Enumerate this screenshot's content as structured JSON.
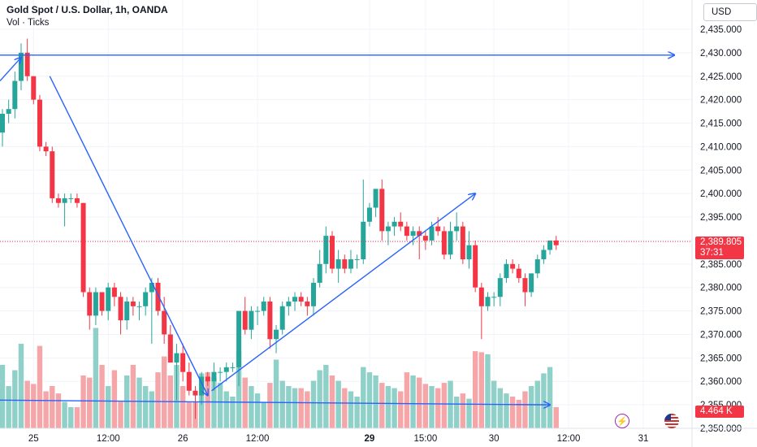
{
  "header": {
    "symbol_line": "Gold Spot / U.S. Dollar, 1h, OANDA",
    "indicator_line": "Vol · Ticks"
  },
  "currency_label": "USD",
  "last_price": {
    "value": "2,389.805",
    "countdown": "37:31"
  },
  "last_volume": "4.464 K",
  "icons": [
    "lightning-icon",
    "us-flag-icon"
  ],
  "colors": {
    "up": "#26a69a",
    "down": "#f23645",
    "up_vol": "#8fd0c8",
    "down_vol": "#f5a6a9",
    "drawing": "#2962ff",
    "grid": "#f0f3fa"
  },
  "chart_data": {
    "type": "candlestick",
    "title": "Gold Spot / U.S. Dollar, 1h, OANDA",
    "subtitle": "Vol · Ticks",
    "ylim": [
      2350.0,
      2440.0
    ],
    "y_ticks": [
      "2,435.000",
      "2,430.000",
      "2,425.000",
      "2,420.000",
      "2,415.000",
      "2,410.000",
      "2,405.000",
      "2,400.000",
      "2,395.000",
      "2,390.000",
      "2,385.000",
      "2,380.000",
      "2,375.000",
      "2,370.000",
      "2,365.000",
      "2,360.000",
      "2,355.000",
      "2,350.000"
    ],
    "x_ticks": [
      {
        "label": "25",
        "index": 5
      },
      {
        "label": "12:00",
        "index": 17
      },
      {
        "label": "26",
        "index": 29
      },
      {
        "label": "12:00",
        "index": 41
      },
      {
        "label": "29",
        "index": 59
      },
      {
        "label": "15:00",
        "index": 68
      },
      {
        "label": "30",
        "index": 79
      },
      {
        "label": "12:00",
        "index": 91
      },
      {
        "label": "31",
        "index": 103
      }
    ],
    "candles": [
      [
        2413,
        2418,
        2410,
        2417,
        60
      ],
      [
        2417,
        2420,
        2415,
        2418,
        40
      ],
      [
        2418,
        2426,
        2416,
        2424,
        55
      ],
      [
        2424,
        2432,
        2422,
        2430,
        80
      ],
      [
        2430,
        2433,
        2424,
        2425,
        45
      ],
      [
        2425,
        2425,
        2419,
        2420,
        42
      ],
      [
        2420,
        2421,
        2409,
        2410,
        78
      ],
      [
        2410,
        2411,
        2408,
        2409,
        35
      ],
      [
        2409,
        2410,
        2398,
        2399,
        40
      ],
      [
        2399,
        2400,
        2397,
        2398,
        33
      ],
      [
        2398,
        2400,
        2393,
        2399,
        25
      ],
      [
        2399,
        2400,
        2398,
        2399,
        20
      ],
      [
        2399,
        2400,
        2397,
        2398,
        20
      ],
      [
        2398,
        2398,
        2378,
        2379,
        50
      ],
      [
        2379,
        2380,
        2371,
        2374,
        48
      ],
      [
        2374,
        2380,
        2372,
        2379,
        95
      ],
      [
        2379,
        2379,
        2374,
        2375,
        60
      ],
      [
        2375,
        2381,
        2373,
        2380,
        40
      ],
      [
        2380,
        2381,
        2376,
        2378,
        55
      ],
      [
        2378,
        2379,
        2370,
        2373,
        25
      ],
      [
        2373,
        2378,
        2371,
        2377,
        50
      ],
      [
        2377,
        2378,
        2374,
        2376,
        60
      ],
      [
        2376,
        2377,
        2373,
        2376,
        48
      ],
      [
        2376,
        2380,
        2374,
        2379,
        40
      ],
      [
        2379,
        2382,
        2368,
        2381,
        35
      ],
      [
        2381,
        2382,
        2374,
        2375,
        53
      ],
      [
        2375,
        2378,
        2368,
        2370,
        68
      ],
      [
        2370,
        2372,
        2364,
        2364,
        50
      ],
      [
        2364,
        2368,
        2356,
        2366,
        60
      ],
      [
        2366,
        2368,
        2360,
        2362,
        40
      ],
      [
        2362,
        2364,
        2357,
        2358,
        25
      ],
      [
        2358,
        2359,
        2352,
        2357,
        25
      ],
      [
        2357,
        2362,
        2355,
        2361,
        52
      ],
      [
        2361,
        2362,
        2359,
        2360,
        53
      ],
      [
        2360,
        2364,
        2358,
        2362,
        48
      ],
      [
        2362,
        2363,
        2360,
        2362,
        43
      ],
      [
        2362,
        2364,
        2360,
        2363,
        35
      ],
      [
        2363,
        2364,
        2362,
        2363,
        30
      ],
      [
        2363,
        2375,
        2359,
        2375,
        73
      ],
      [
        2375,
        2378,
        2370,
        2371,
        48
      ],
      [
        2371,
        2376,
        2369,
        2375,
        40
      ],
      [
        2375,
        2376,
        2372,
        2375,
        33
      ],
      [
        2375,
        2378,
        2374,
        2377,
        25
      ],
      [
        2377,
        2378,
        2367,
        2369,
        43
      ],
      [
        2369,
        2372,
        2366,
        2371,
        65
      ],
      [
        2371,
        2377,
        2370,
        2376,
        45
      ],
      [
        2376,
        2378,
        2374,
        2377,
        40
      ],
      [
        2377,
        2379,
        2375,
        2378,
        38
      ],
      [
        2378,
        2379,
        2376,
        2377,
        38
      ],
      [
        2377,
        2378,
        2374,
        2376,
        35
      ],
      [
        2376,
        2382,
        2374,
        2381,
        45
      ],
      [
        2381,
        2388,
        2380,
        2385,
        55
      ],
      [
        2385,
        2393,
        2383,
        2391,
        60
      ],
      [
        2391,
        2392,
        2383,
        2384,
        50
      ],
      [
        2384,
        2388,
        2381,
        2386,
        45
      ],
      [
        2386,
        2387,
        2383,
        2384,
        38
      ],
      [
        2384,
        2388,
        2383,
        2386,
        35
      ],
      [
        2386,
        2387,
        2384,
        2386,
        30
      ],
      [
        2386,
        2403,
        2385,
        2394,
        58
      ],
      [
        2394,
        2398,
        2393,
        2397,
        53
      ],
      [
        2397,
        2401,
        2395,
        2401,
        50
      ],
      [
        2401,
        2403,
        2390,
        2392,
        43
      ],
      [
        2392,
        2394,
        2389,
        2393,
        40
      ],
      [
        2393,
        2395,
        2391,
        2394,
        38
      ],
      [
        2394,
        2396,
        2392,
        2393,
        35
      ],
      [
        2393,
        2394,
        2390,
        2391,
        53
      ],
      [
        2391,
        2393,
        2389,
        2392,
        50
      ],
      [
        2392,
        2393,
        2386,
        2391,
        48
      ],
      [
        2391,
        2392,
        2388,
        2390,
        42
      ],
      [
        2390,
        2394,
        2389,
        2393,
        40
      ],
      [
        2393,
        2395,
        2391,
        2392,
        38
      ],
      [
        2392,
        2393,
        2386,
        2387,
        43
      ],
      [
        2387,
        2394,
        2386,
        2392,
        45
      ],
      [
        2392,
        2396,
        2390,
        2393,
        30
      ],
      [
        2393,
        2394,
        2385,
        2386,
        33
      ],
      [
        2386,
        2392,
        2384,
        2389,
        28
      ],
      [
        2389,
        2390,
        2379,
        2380,
        73
      ],
      [
        2380,
        2381,
        2369,
        2376,
        72
      ],
      [
        2376,
        2379,
        2375,
        2378,
        70
      ],
      [
        2378,
        2379,
        2376,
        2378,
        45
      ],
      [
        2378,
        2383,
        2376,
        2382,
        38
      ],
      [
        2382,
        2386,
        2381,
        2385,
        33
      ],
      [
        2385,
        2386,
        2383,
        2384,
        30
      ],
      [
        2384,
        2385,
        2381,
        2382,
        27
      ],
      [
        2382,
        2383,
        2376,
        2379,
        35
      ],
      [
        2379,
        2383,
        2378,
        2383,
        40
      ],
      [
        2383,
        2387,
        2382,
        2386,
        45
      ],
      [
        2386,
        2389,
        2385,
        2388,
        52
      ],
      [
        2388,
        2390,
        2387,
        2390,
        58
      ],
      [
        2390,
        2391,
        2388,
        2389,
        20
      ]
    ],
    "volume_note": "5th value of each candle is relative tick volume (Vol · Ticks)"
  }
}
